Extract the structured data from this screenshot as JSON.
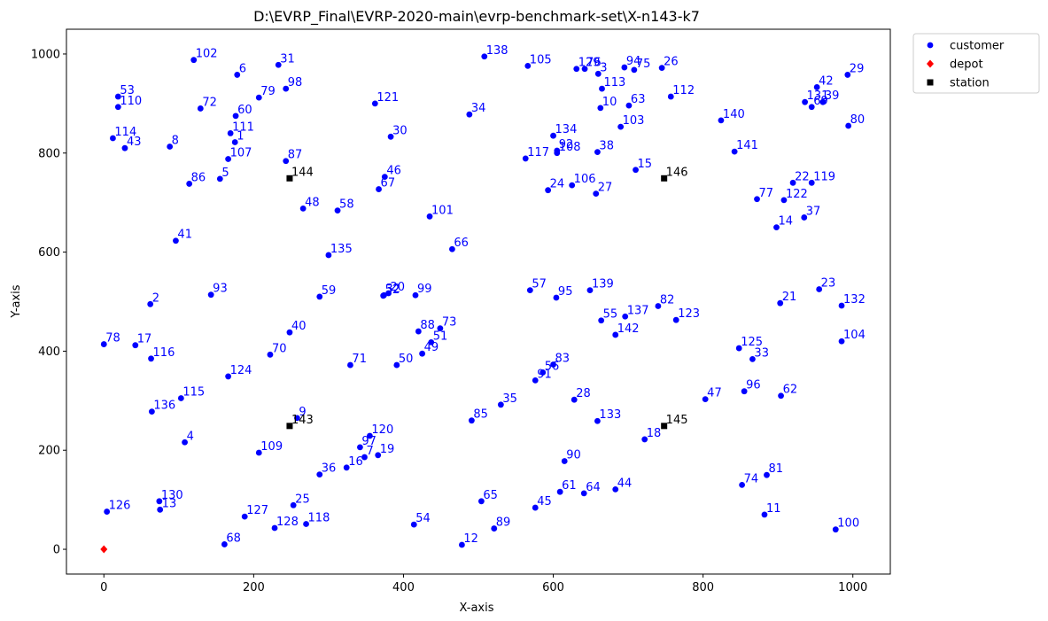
{
  "chart_data": {
    "type": "scatter",
    "title": "D:\\EVRP_Final\\EVRP-2020-main\\evrp-benchmark-set\\X-n143-k7",
    "xlabel": "X-axis",
    "ylabel": "Y-axis",
    "xlim": [
      -50,
      1050
    ],
    "ylim": [
      -50,
      1050
    ],
    "xticks": [
      0,
      200,
      400,
      600,
      800,
      1000
    ],
    "yticks": [
      0,
      200,
      400,
      600,
      800,
      1000
    ],
    "legend_position": "upper right, outside plot",
    "colors": {
      "customer": "#0000ff",
      "depot": "#ff0000",
      "station": "#000000",
      "customer_label": "#0000ff",
      "station_label": "#000000"
    },
    "series": [
      {
        "name": "customer",
        "marker": "circle",
        "points": [
          {
            "id": "2",
            "x": 62,
            "y": 495
          },
          {
            "id": "4",
            "x": 108,
            "y": 216
          },
          {
            "id": "5",
            "x": 155,
            "y": 748
          },
          {
            "id": "6",
            "x": 178,
            "y": 958
          },
          {
            "id": "8",
            "x": 88,
            "y": 813
          },
          {
            "id": "9",
            "x": 258,
            "y": 265
          },
          {
            "id": "10",
            "x": 663,
            "y": 891
          },
          {
            "id": "11",
            "x": 882,
            "y": 70
          },
          {
            "id": "12",
            "x": 478,
            "y": 9
          },
          {
            "id": "13",
            "x": 75,
            "y": 80
          },
          {
            "id": "14",
            "x": 898,
            "y": 650
          },
          {
            "id": "15",
            "x": 710,
            "y": 766
          },
          {
            "id": "17",
            "x": 42,
            "y": 412
          },
          {
            "id": "18",
            "x": 722,
            "y": 222
          },
          {
            "id": "19",
            "x": 366,
            "y": 190
          },
          {
            "id": "20",
            "x": 380,
            "y": 517
          },
          {
            "id": "21",
            "x": 903,
            "y": 497
          },
          {
            "id": "22",
            "x": 920,
            "y": 740
          },
          {
            "id": "23",
            "x": 955,
            "y": 525
          },
          {
            "id": "24",
            "x": 593,
            "y": 725
          },
          {
            "id": "25",
            "x": 253,
            "y": 89
          },
          {
            "id": "26",
            "x": 745,
            "y": 972
          },
          {
            "id": "27",
            "x": 657,
            "y": 718
          },
          {
            "id": "28",
            "x": 628,
            "y": 302
          },
          {
            "id": "29",
            "x": 993,
            "y": 958
          },
          {
            "id": "30",
            "x": 383,
            "y": 833
          },
          {
            "id": "31",
            "x": 233,
            "y": 978
          },
          {
            "id": "33",
            "x": 866,
            "y": 384
          },
          {
            "id": "34",
            "x": 488,
            "y": 878
          },
          {
            "id": "35",
            "x": 530,
            "y": 292
          },
          {
            "id": "36",
            "x": 288,
            "y": 151
          },
          {
            "id": "37",
            "x": 935,
            "y": 670
          },
          {
            "id": "38",
            "x": 659,
            "y": 802
          },
          {
            "id": "40",
            "x": 248,
            "y": 438
          },
          {
            "id": "41",
            "x": 96,
            "y": 623
          },
          {
            "id": "42",
            "x": 952,
            "y": 933
          },
          {
            "id": "43",
            "x": 28,
            "y": 810
          },
          {
            "id": "44",
            "x": 683,
            "y": 121
          },
          {
            "id": "45",
            "x": 576,
            "y": 84
          },
          {
            "id": "46",
            "x": 375,
            "y": 752
          },
          {
            "id": "47",
            "x": 803,
            "y": 303
          },
          {
            "id": "48",
            "x": 266,
            "y": 688
          },
          {
            "id": "49",
            "x": 425,
            "y": 395
          },
          {
            "id": "50",
            "x": 391,
            "y": 372
          },
          {
            "id": "51",
            "x": 437,
            "y": 418
          },
          {
            "id": "52",
            "x": 373,
            "y": 512
          },
          {
            "id": "53",
            "x": 19,
            "y": 914
          },
          {
            "id": "54",
            "x": 414,
            "y": 50
          },
          {
            "id": "55",
            "x": 664,
            "y": 462
          },
          {
            "id": "56",
            "x": 586,
            "y": 357
          },
          {
            "id": "57",
            "x": 569,
            "y": 523
          },
          {
            "id": "58",
            "x": 312,
            "y": 684
          },
          {
            "id": "59",
            "x": 288,
            "y": 510
          },
          {
            "id": "60",
            "x": 176,
            "y": 875
          },
          {
            "id": "61",
            "x": 609,
            "y": 116
          },
          {
            "id": "62",
            "x": 904,
            "y": 310
          },
          {
            "id": "63",
            "x": 701,
            "y": 896
          },
          {
            "id": "64",
            "x": 641,
            "y": 113
          },
          {
            "id": "65",
            "x": 504,
            "y": 97
          },
          {
            "id": "66",
            "x": 465,
            "y": 606
          },
          {
            "id": "67",
            "x": 367,
            "y": 727
          },
          {
            "id": "68",
            "x": 161,
            "y": 10
          },
          {
            "id": "69",
            "x": 945,
            "y": 893
          },
          {
            "id": "70",
            "x": 222,
            "y": 393
          },
          {
            "id": "71",
            "x": 329,
            "y": 372
          },
          {
            "id": "72",
            "x": 129,
            "y": 890
          },
          {
            "id": "73",
            "x": 449,
            "y": 446
          },
          {
            "id": "75",
            "x": 708,
            "y": 968
          },
          {
            "id": "78",
            "x": 0,
            "y": 414
          },
          {
            "id": "79",
            "x": 207,
            "y": 912
          },
          {
            "id": "80",
            "x": 994,
            "y": 855
          },
          {
            "id": "81",
            "x": 885,
            "y": 150
          },
          {
            "id": "82",
            "x": 740,
            "y": 491
          },
          {
            "id": "83",
            "x": 600,
            "y": 373
          },
          {
            "id": "85",
            "x": 491,
            "y": 260
          },
          {
            "id": "86",
            "x": 114,
            "y": 738
          },
          {
            "id": "87",
            "x": 243,
            "y": 784
          },
          {
            "id": "88",
            "x": 420,
            "y": 440
          },
          {
            "id": "89",
            "x": 521,
            "y": 42
          },
          {
            "id": "90",
            "x": 615,
            "y": 178
          },
          {
            "id": "91",
            "x": 576,
            "y": 341
          },
          {
            "id": "92",
            "x": 605,
            "y": 805
          },
          {
            "id": "93",
            "x": 143,
            "y": 514
          },
          {
            "id": "94",
            "x": 695,
            "y": 973
          },
          {
            "id": "95",
            "x": 604,
            "y": 508
          },
          {
            "id": "96",
            "x": 855,
            "y": 319
          },
          {
            "id": "97",
            "x": 342,
            "y": 206
          },
          {
            "id": "98",
            "x": 243,
            "y": 930
          },
          {
            "id": "99",
            "x": 416,
            "y": 513
          },
          {
            "id": "100",
            "x": 977,
            "y": 40
          },
          {
            "id": "101",
            "x": 435,
            "y": 672
          },
          {
            "id": "102",
            "x": 120,
            "y": 988
          },
          {
            "id": "103",
            "x": 690,
            "y": 853
          },
          {
            "id": "104",
            "x": 985,
            "y": 420
          },
          {
            "id": "105",
            "x": 566,
            "y": 976
          },
          {
            "id": "106",
            "x": 625,
            "y": 735
          },
          {
            "id": "107",
            "x": 166,
            "y": 788
          },
          {
            "id": "108",
            "x": 605,
            "y": 800
          },
          {
            "id": "109",
            "x": 207,
            "y": 195
          },
          {
            "id": "110",
            "x": 19,
            "y": 893
          },
          {
            "id": "111",
            "x": 169,
            "y": 840
          },
          {
            "id": "112",
            "x": 757,
            "y": 914
          },
          {
            "id": "113",
            "x": 665,
            "y": 930
          },
          {
            "id": "114",
            "x": 12,
            "y": 830
          },
          {
            "id": "115",
            "x": 103,
            "y": 305
          },
          {
            "id": "116",
            "x": 63,
            "y": 385
          },
          {
            "id": "117",
            "x": 563,
            "y": 789
          },
          {
            "id": "118",
            "x": 270,
            "y": 51
          },
          {
            "id": "119",
            "x": 945,
            "y": 740
          },
          {
            "id": "120",
            "x": 355,
            "y": 229
          },
          {
            "id": "121",
            "x": 362,
            "y": 900
          },
          {
            "id": "122",
            "x": 908,
            "y": 705
          },
          {
            "id": "123",
            "x": 764,
            "y": 463
          },
          {
            "id": "124",
            "x": 166,
            "y": 349
          },
          {
            "id": "125",
            "x": 848,
            "y": 406
          },
          {
            "id": "126",
            "x": 4,
            "y": 76
          },
          {
            "id": "127",
            "x": 188,
            "y": 66
          },
          {
            "id": "128",
            "x": 228,
            "y": 43
          },
          {
            "id": "129",
            "x": 631,
            "y": 970
          },
          {
            "id": "130",
            "x": 74,
            "y": 97
          },
          {
            "id": "131",
            "x": 936,
            "y": 903
          },
          {
            "id": "132",
            "x": 985,
            "y": 492
          },
          {
            "id": "133",
            "x": 659,
            "y": 259
          },
          {
            "id": "134",
            "x": 600,
            "y": 835
          },
          {
            "id": "135",
            "x": 300,
            "y": 594
          },
          {
            "id": "136",
            "x": 64,
            "y": 278
          },
          {
            "id": "137",
            "x": 696,
            "y": 470
          },
          {
            "id": "138",
            "x": 508,
            "y": 995
          },
          {
            "id": "139",
            "x": 649,
            "y": 523
          },
          {
            "id": "140",
            "x": 824,
            "y": 866
          },
          {
            "id": "141",
            "x": 842,
            "y": 803
          },
          {
            "id": "142",
            "x": 683,
            "y": 433
          },
          {
            "id": "1",
            "x": 175,
            "y": 822
          },
          {
            "id": "3",
            "x": 660,
            "y": 960
          },
          {
            "id": "7",
            "x": 348,
            "y": 186
          },
          {
            "id": "16",
            "x": 324,
            "y": 165
          },
          {
            "id": "32",
            "x": 374,
            "y": 513
          },
          {
            "id": "39",
            "x": 960,
            "y": 903
          },
          {
            "id": "74",
            "x": 852,
            "y": 130
          },
          {
            "id": "76",
            "x": 642,
            "y": 970
          },
          {
            "id": "77",
            "x": 872,
            "y": 707
          }
        ]
      },
      {
        "name": "depot",
        "marker": "diamond",
        "points": [
          {
            "id": "",
            "x": 0,
            "y": 0
          }
        ]
      },
      {
        "name": "station",
        "marker": "square",
        "points": [
          {
            "id": "143",
            "x": 248,
            "y": 249
          },
          {
            "id": "144",
            "x": 248,
            "y": 749
          },
          {
            "id": "145",
            "x": 748,
            "y": 249
          },
          {
            "id": "146",
            "x": 748,
            "y": 749
          }
        ]
      }
    ]
  }
}
